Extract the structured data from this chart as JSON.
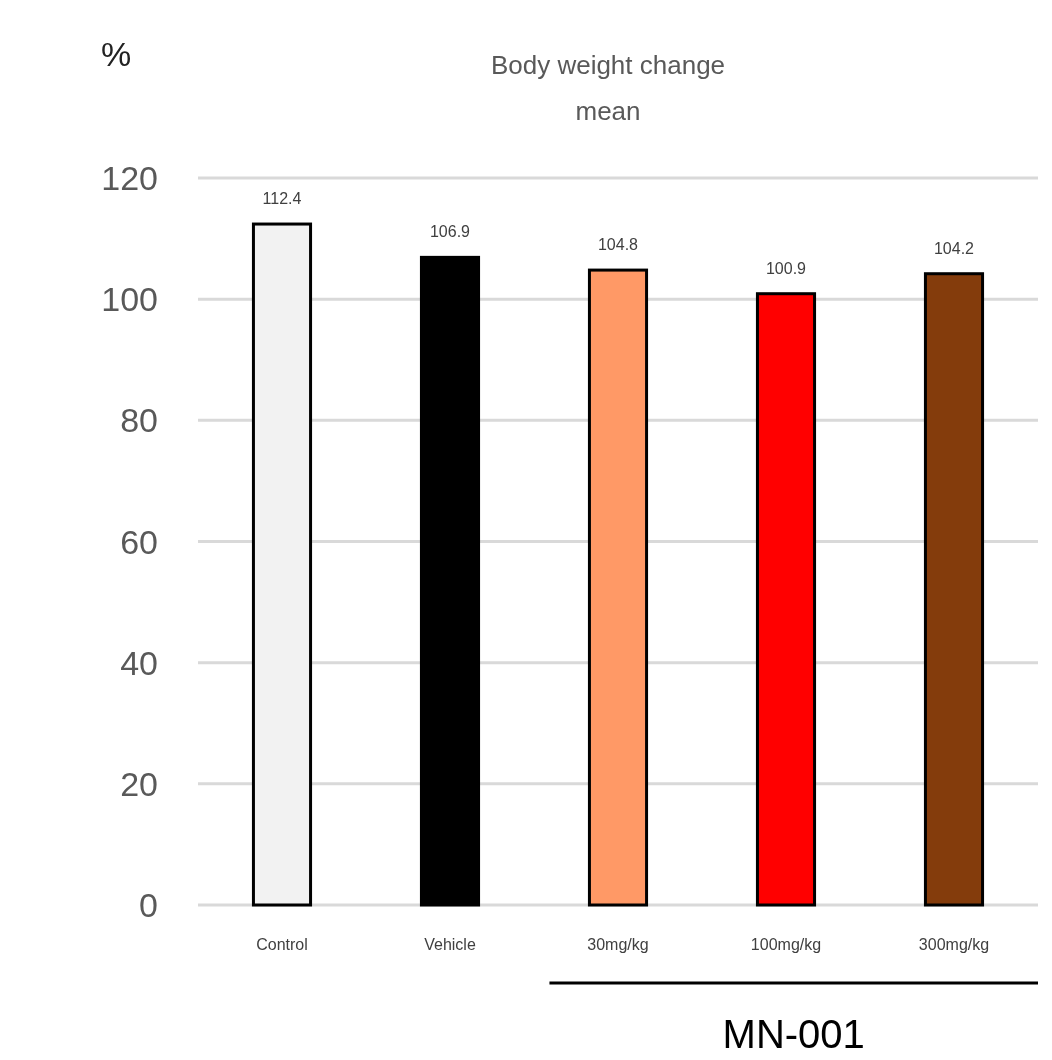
{
  "chart_data": {
    "type": "bar",
    "title": "Body weight  change",
    "subtitle": "mean",
    "ylabel": "%",
    "categories": [
      "Control",
      "Vehicle",
      "30mg/kg",
      "100mg/kg",
      "300mg/kg"
    ],
    "values": [
      112.4,
      106.9,
      104.8,
      100.9,
      104.2
    ],
    "colors": [
      "#f2f2f2",
      "#000000",
      "#ff9966",
      "#ff0000",
      "#843c0c"
    ],
    "ylim": [
      0,
      120
    ],
    "yticks": [
      0,
      20,
      40,
      60,
      80,
      100,
      120
    ],
    "grid": "y",
    "data_labels": true,
    "annotations": [
      "MN-001"
    ]
  }
}
